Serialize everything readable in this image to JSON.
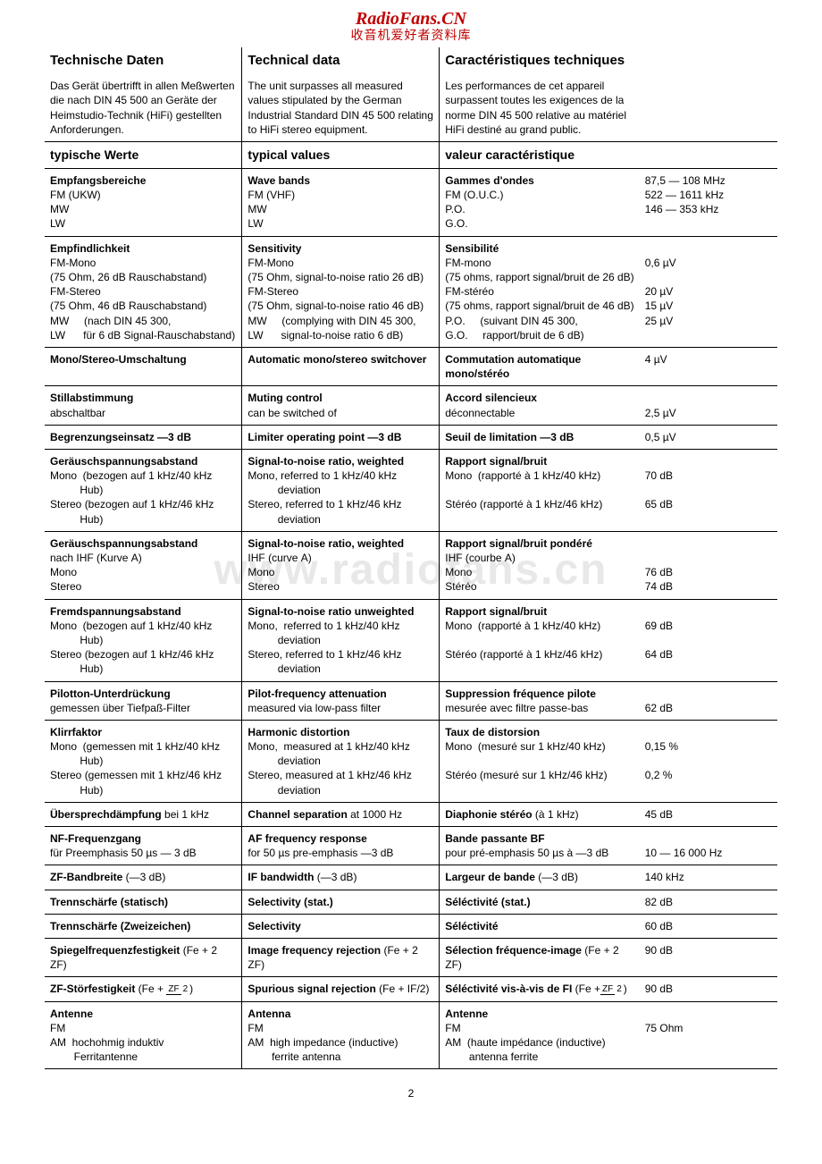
{
  "brand": "RadioFans.CN",
  "brand_sub": "收音机爱好者资料库",
  "watermark": "www.radiofans.cn",
  "page_number": "2",
  "colors": {
    "brand": "#c00000",
    "text": "#000000",
    "bg": "#ffffff",
    "watermark": "#e8e8e8"
  },
  "headers": {
    "de": "Technische Daten",
    "en": "Technical data",
    "fr": "Caractéristiques techniques"
  },
  "intro": {
    "de": "Das Gerät übertrifft in allen Meßwerten die nach DIN 45 500 an Geräte der Heimstudio-Technik (HiFi) gestellten Anforderungen.",
    "en": "The unit surpasses all measured values stipulated by the German Industrial Standard DIN 45 500 relating to HiFi stereo equipment.",
    "fr": "Les performances de cet appareil surpassent toutes les exigences de la norme DIN 45 500 relative au matériel HiFi destiné au grand public."
  },
  "typ_headers": {
    "de": "typische Werte",
    "en": "typical values",
    "fr": "valeur caractéristique"
  },
  "rows": [
    {
      "de_h": "Empfangsbereiche",
      "de_l": [
        "FM (UKW)",
        "MW",
        "LW"
      ],
      "en_h": "Wave bands",
      "en_l": [
        "FM (VHF)",
        "MW",
        "LW"
      ],
      "fr_h": "Gammes d'ondes",
      "fr_l": [
        "FM (O.U.C.)",
        "P.O.",
        "G.O."
      ],
      "val_l": [
        "87,5 —   108 MHz",
        "522   — 1611  kHz",
        "146   —   353  kHz"
      ]
    },
    {
      "de_h": "Empfindlichkeit",
      "de_l": [
        "FM-Mono",
        "(75 Ohm, 26 dB Rauschabstand)",
        "FM-Stereo",
        "(75 Ohm, 46 dB Rauschabstand)",
        "MW     (nach DIN 45 300,",
        "LW      für 6 dB Signal-Rauschabstand)"
      ],
      "en_h": "Sensitivity",
      "en_l": [
        "FM-Mono",
        "(75 Ohm, signal-to-noise ratio 26 dB)",
        "FM-Stereo",
        "(75 Ohm, signal-to-noise ratio 46 dB)",
        "MW     (complying with DIN 45 300,",
        "LW      signal-to-noise ratio 6 dB)"
      ],
      "fr_h": "Sensibilité",
      "fr_l": [
        "FM-mono",
        "(75 ohms, rapport signal/bruit de 26 dB)",
        "FM-stéréo",
        "(75 ohms, rapport signal/bruit de 46 dB)",
        "P.O.     (suivant DIN 45 300,",
        "G.O.     rapport/bruit de 6 dB)"
      ],
      "val_l": [
        "",
        "0,6 µV",
        "",
        "20    µV",
        "15    µV",
        "25    µV"
      ]
    },
    {
      "de_h": "Mono/Stereo-Umschaltung",
      "de_l": [],
      "en_h": "Automatic mono/stereo switchover",
      "en_l": [],
      "fr_h": "Commutation automatique mono/stéréo",
      "fr_l": [],
      "val_l": [
        "4    µV"
      ]
    },
    {
      "de_h": "Stillabstimmung",
      "de_l": [
        "abschaltbar"
      ],
      "en_h": "Muting control",
      "en_l": [
        "can be switched of"
      ],
      "fr_h": "Accord silencieux",
      "fr_l": [
        "déconnectable"
      ],
      "val_l": [
        "",
        "2,5 µV"
      ]
    },
    {
      "de_h": "Begrenzungseinsatz  —3 dB",
      "de_l": [],
      "en_h": "Limiter operating point   —3 dB",
      "en_l": [],
      "fr_h": "Seuil de limitation  —3 dB",
      "fr_l": [],
      "val_l": [
        "0,5 µV"
      ]
    },
    {
      "de_h": "Geräuschspannungsabstand",
      "de_l": [
        "Mono  (bezogen auf 1 kHz/40 kHz",
        "          Hub)",
        "Stereo (bezogen auf 1 kHz/46 kHz",
        "          Hub)"
      ],
      "en_h": "Signal-to-noise ratio, weighted",
      "en_l": [
        "Mono, referred to 1 kHz/40 kHz",
        "          deviation",
        "Stereo, referred to 1 kHz/46 kHz",
        "          deviation"
      ],
      "fr_h": "Rapport signal/bruit",
      "fr_l": [
        "Mono  (rapporté à 1 kHz/40 kHz)",
        "",
        "Stéréo (rapporté à 1 kHz/46 kHz)"
      ],
      "val_l": [
        "",
        "70 dB",
        "",
        "65 dB"
      ]
    },
    {
      "de_h": "Geräuschspannungsabstand",
      "de_l": [
        "nach IHF (Kurve A)",
        "Mono",
        "Stereo"
      ],
      "en_h": "Signal-to-noise ratio, weighted",
      "en_l": [
        "IHF (curve A)",
        "Mono",
        "Stereo"
      ],
      "fr_h": "Rapport signal/bruit pondéré",
      "fr_l": [
        "IHF (courbe A)",
        "Mono",
        "Stéréo"
      ],
      "val_l": [
        "",
        "",
        "76 dB",
        "74 dB"
      ]
    },
    {
      "de_h": "Fremdspannungsabstand",
      "de_l": [
        "Mono  (bezogen auf 1 kHz/40 kHz",
        "          Hub)",
        "Stereo (bezogen auf 1 kHz/46 kHz",
        "          Hub)"
      ],
      "en_h": "Signal-to-noise ratio unweighted",
      "en_l": [
        "Mono,  referred to 1 kHz/40 kHz",
        "          deviation",
        "Stereo, referred to 1 kHz/46 kHz",
        "          deviation"
      ],
      "fr_h": "Rapport signal/bruit",
      "fr_l": [
        "Mono  (rapporté à 1 kHz/40 kHz)",
        "",
        "Stéréo (rapporté à 1 kHz/46 kHz)"
      ],
      "val_l": [
        "",
        "69 dB",
        "",
        "64 dB"
      ]
    },
    {
      "de_h": "Pilotton-Unterdrückung",
      "de_l": [
        "gemessen über Tiefpaß-Filter"
      ],
      "en_h": "Pilot-frequency attenuation",
      "en_l": [
        "measured via low-pass filter"
      ],
      "fr_h": "Suppression fréquence pilote",
      "fr_l": [
        "mesurée avec filtre passe-bas"
      ],
      "val_l": [
        "",
        "62 dB"
      ]
    },
    {
      "de_h": "Klirrfaktor",
      "de_l": [
        "Mono  (gemessen mit 1 kHz/40 kHz",
        "          Hub)",
        "Stereo (gemessen mit 1 kHz/46 kHz",
        "          Hub)"
      ],
      "en_h": "Harmonic distortion",
      "en_l": [
        "Mono,  measured at 1 kHz/40 kHz",
        "          deviation",
        "Stereo, measured at 1 kHz/46 kHz",
        "          deviation"
      ],
      "fr_h": "Taux de distorsion",
      "fr_l": [
        "Mono  (mesuré sur 1 kHz/40 kHz)",
        "",
        "Stéréo (mesuré sur 1 kHz/46 kHz)"
      ],
      "val_l": [
        "",
        "0,15 %",
        "",
        "0,2   %"
      ]
    },
    {
      "de_h": "Übersprechdämpfung",
      "de_t": "  bei 1 kHz",
      "en_h": "Channel separation",
      "en_t": "  at 1000 Hz",
      "fr_h": "Diaphonie stéréo",
      "fr_t": "  (à 1 kHz)",
      "val_l": [
        "45 dB"
      ]
    },
    {
      "de_h": "NF-Frequenzgang",
      "de_l": [
        "für Preemphasis 50 µs — 3 dB"
      ],
      "en_h": "AF frequency response",
      "en_l": [
        "for 50 µs pre-emphasis —3 dB"
      ],
      "fr_h": "Bande passante BF",
      "fr_l": [
        "pour pré-emphasis 50 µs à —3 dB"
      ],
      "val_l": [
        "",
        "10 — 16 000 Hz"
      ]
    },
    {
      "de_h": "ZF-Bandbreite",
      "de_t": "   (—3 dB)",
      "en_h": "IF bandwidth",
      "en_t": "   (—3 dB)",
      "fr_h": "Largeur de bande",
      "fr_t": "   (—3 dB)",
      "val_l": [
        "140 kHz"
      ]
    },
    {
      "de_h": "Trennschärfe (statisch)",
      "de_l": [],
      "en_h": "Selectivity (stat.)",
      "en_l": [],
      "fr_h": "Séléctivité (stat.)",
      "fr_l": [],
      "val_l": [
        "82 dB"
      ]
    },
    {
      "de_h": "Trennschärfe (Zweizeichen)",
      "de_l": [],
      "en_h": "Selectivity",
      "en_l": [],
      "fr_h": "Séléctivité",
      "fr_l": [],
      "val_l": [
        "60 dB"
      ]
    },
    {
      "de_h": "Spiegelfrequenzfestigkeit",
      "de_t": " (Fe + 2 ZF)",
      "en_h": "Image frequency rejection",
      "en_t": " (Fe + 2 ZF)",
      "fr_h": "Sélection fréquence-image",
      "fr_t": " (Fe + 2 ZF)",
      "val_l": [
        "90 dB"
      ]
    },
    {
      "de_h": "ZF-Störfestigkeit",
      "de_frac": {
        "pre": "  (Fe + ",
        "top": "ZF",
        "bot": "2",
        "post": ")"
      },
      "en_h": "Spurious signal rejection",
      "en_t": " (Fe + IF/2)",
      "fr_h": "Séléctivité vis-à-vis de FI",
      "fr_frac": {
        "pre": "  (Fe +",
        "top": "ZF",
        "bot": "2",
        "post": ")"
      },
      "val_l": [
        "90 dB"
      ]
    },
    {
      "de_h": "Antenne",
      "de_l": [
        "FM",
        "AM  hochohmig induktiv",
        "        Ferritantenne"
      ],
      "en_h": "Antenna",
      "en_l": [
        "FM",
        "AM  high impedance (inductive)",
        "        ferrite antenna"
      ],
      "fr_h": "Antenne",
      "fr_l": [
        "FM",
        "AM  (haute impédance (inductive)",
        "        antenna ferrite"
      ],
      "val_l": [
        "",
        "75 Ohm"
      ]
    }
  ]
}
